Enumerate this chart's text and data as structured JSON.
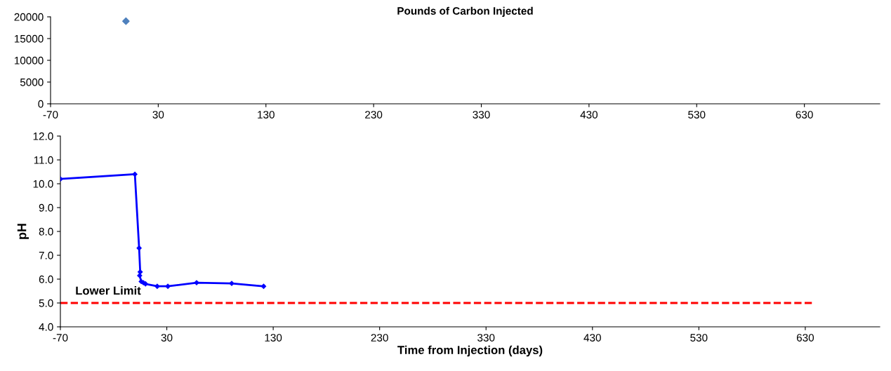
{
  "chart_data": [
    {
      "type": "scatter",
      "title": "Pounds of Carbon Injected",
      "x": [
        0
      ],
      "values": [
        19000
      ],
      "color": "#4f81bd",
      "marker": "diamond",
      "xlim": [
        -70,
        700
      ],
      "xticks": [
        -70,
        30,
        130,
        230,
        330,
        430,
        530,
        630
      ],
      "ylim": [
        0,
        20000
      ],
      "yticks": [
        0,
        5000,
        10000,
        15000,
        20000
      ],
      "grid": false,
      "legend": false
    },
    {
      "type": "line",
      "xlabel": "Time from Injection (days)",
      "ylabel": "pH",
      "series": [
        {
          "color": "#0000ff",
          "x": [
            -70,
            0,
            4,
            5,
            4.5,
            6,
            8,
            10,
            21,
            31,
            58,
            91,
            121
          ],
          "values": [
            10.2,
            10.4,
            7.3,
            6.3,
            6.15,
            5.9,
            5.85,
            5.8,
            5.7,
            5.7,
            5.85,
            5.82,
            5.7
          ]
        }
      ],
      "marker": "diamond",
      "line_style": "solid",
      "xlim": [
        -70,
        700
      ],
      "xticks": [
        -70,
        30,
        130,
        230,
        330,
        430,
        530,
        630
      ],
      "ylim": [
        4.0,
        12.0
      ],
      "yticks": [
        {
          "value": 4,
          "label": "4.0"
        },
        {
          "value": 5,
          "label": "5.0"
        },
        {
          "value": 6,
          "label": "6.0"
        },
        {
          "value": 7,
          "label": "7.0"
        },
        {
          "value": 8,
          "label": "8.0"
        },
        {
          "value": 9,
          "label": "9.0"
        },
        {
          "value": 10,
          "label": "10.0"
        },
        {
          "value": 11,
          "label": "11.0"
        },
        {
          "value": 12,
          "label": "12.0"
        }
      ],
      "ref_lines": [
        {
          "axis": "y",
          "value": 5.0,
          "label": "Lower Limit",
          "color": "#ff0000",
          "line_style": "dashed"
        }
      ],
      "grid": false,
      "legend": false
    }
  ]
}
